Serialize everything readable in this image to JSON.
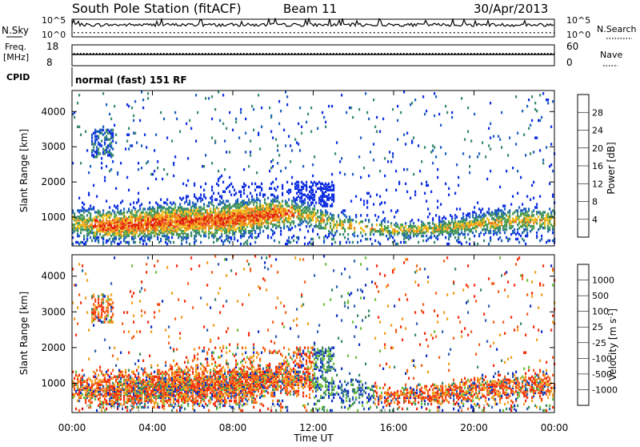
{
  "header": {
    "station": "South Pole Station (fitACF)",
    "beam": "Beam 11",
    "date": "30/Apr/2013"
  },
  "panels": {
    "nsky_label": "N.Sky",
    "nsearch_label": "N.Search",
    "nsky_ticks": [
      "10^5",
      "10^0"
    ],
    "nsearch_ticks": [
      "10^5",
      "10^0"
    ],
    "freq_label_line1": "Freq.",
    "freq_label_line2": "[MHz]",
    "freq_ticks": [
      "18",
      "8"
    ],
    "nave_label": "Nave",
    "nave_ticks": [
      "60",
      "0"
    ],
    "cpid_label": "CPID",
    "cpid_value": "normal (fast) 151 RF"
  },
  "colors": {
    "power": [
      "#1030e0",
      "#2060c0",
      "#3a8a70",
      "#50a050",
      "#f0c020",
      "#f09020",
      "#f06020",
      "#e02010"
    ],
    "velocity": [
      "#e01010",
      "#f03010",
      "#f06020",
      "#f0a020",
      "#c0c0b0",
      "#70c040",
      "#3a8a60",
      "#3060b0",
      "#1030c0"
    ]
  },
  "chart_data": [
    {
      "type": "heatmap",
      "name": "power",
      "ylabel": "Slant Range [km]",
      "yticks": [
        1000,
        2000,
        3000,
        4000
      ],
      "ylim": [
        180,
        4600
      ],
      "xticks": [
        "00:00",
        "04:00",
        "08:00",
        "12:00",
        "16:00",
        "20:00",
        "00:00"
      ],
      "xlim_hours": [
        0,
        24
      ],
      "colorbar_label": "Power [dB]",
      "colorbar_ticks": [
        "4",
        "8",
        "12",
        "16",
        "20",
        "24",
        "28"
      ],
      "colorbar_range": [
        0,
        30
      ]
    },
    {
      "type": "heatmap",
      "name": "velocity",
      "ylabel": "Slant Range [km]",
      "yticks": [
        1000,
        2000,
        3000,
        4000
      ],
      "ylim": [
        180,
        4600
      ],
      "xticks": [
        "00:00",
        "04:00",
        "08:00",
        "12:00",
        "16:00",
        "20:00",
        "00:00"
      ],
      "xlim_hours": [
        0,
        24
      ],
      "xlabel": "Time UT",
      "colorbar_label": "Velocity [m s^-1]",
      "colorbar_ticks": [
        "1000",
        "500",
        "100",
        "25",
        "-25",
        "-100",
        "-500",
        "-1000"
      ]
    }
  ]
}
